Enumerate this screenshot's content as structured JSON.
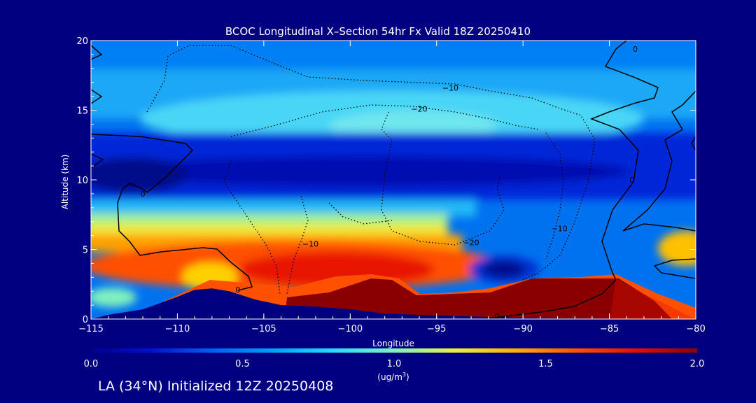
{
  "chart_data": {
    "type": "heatmap",
    "title": "BCOC Longitudinal X–Section 54hr  Fx Valid 18Z 20250410",
    "xlabel": "Longitude",
    "ylabel": "Altitude (km)",
    "xlim": [
      -115,
      -80
    ],
    "ylim": [
      0,
      20
    ],
    "x_ticks": [
      "−115",
      "−110",
      "−105",
      "−100",
      "−95",
      "−90",
      "−85",
      "−80"
    ],
    "y_ticks": [
      "0",
      "5",
      "10",
      "15",
      "20"
    ],
    "colorbar": {
      "min": 0.0,
      "max": 2.0,
      "ticks": [
        "0.0",
        "0.5",
        "1.0",
        "1.5",
        "2.0"
      ],
      "unit": "(ug/m",
      "unit_sup": "3",
      "unit_close": ")",
      "colors": [
        "#00008a",
        "#0010d0",
        "#0060f0",
        "#00a0f8",
        "#30d8f8",
        "#80f0c0",
        "#e8f040",
        "#ffb000",
        "#ff5000",
        "#e01000",
        "#8a0000"
      ]
    },
    "contour_labels": [
      {
        "text": "−10",
        "lon": -94.2,
        "alt": 16.6
      },
      {
        "text": "−20",
        "lon": -96.0,
        "alt": 15.1
      },
      {
        "text": "−20",
        "lon": -93.0,
        "alt": 5.5
      },
      {
        "text": "−10",
        "lon": -102.3,
        "alt": 5.4
      },
      {
        "text": "−10",
        "lon": -87.9,
        "alt": 6.5
      },
      {
        "text": "0",
        "lon": -112.0,
        "alt": 9.0
      },
      {
        "text": "0",
        "lon": -106.5,
        "alt": 2.1
      },
      {
        "text": "0",
        "lon": -83.5,
        "alt": 19.4
      },
      {
        "text": "0",
        "lon": -83.7,
        "alt": 10.0
      },
      {
        "text": "0",
        "lon": -91.5,
        "alt": 0.2
      }
    ],
    "terrain": [
      [
        -115,
        0
      ],
      [
        -114,
        0.3
      ],
      [
        -112,
        0.7
      ],
      [
        -110,
        1.6
      ],
      [
        -109,
        2.1
      ],
      [
        -108,
        2.2
      ],
      [
        -107,
        2.0
      ],
      [
        -105.5,
        1.4
      ],
      [
        -104,
        1.0
      ],
      [
        -102,
        0.9
      ],
      [
        -100,
        0.7
      ],
      [
        -98,
        0.4
      ],
      [
        -96,
        0.3
      ],
      [
        -92,
        0.15
      ],
      [
        -88,
        0.05
      ],
      [
        -80,
        0
      ]
    ]
  },
  "caption": "LA (34°N) Initialized 12Z 20250408"
}
